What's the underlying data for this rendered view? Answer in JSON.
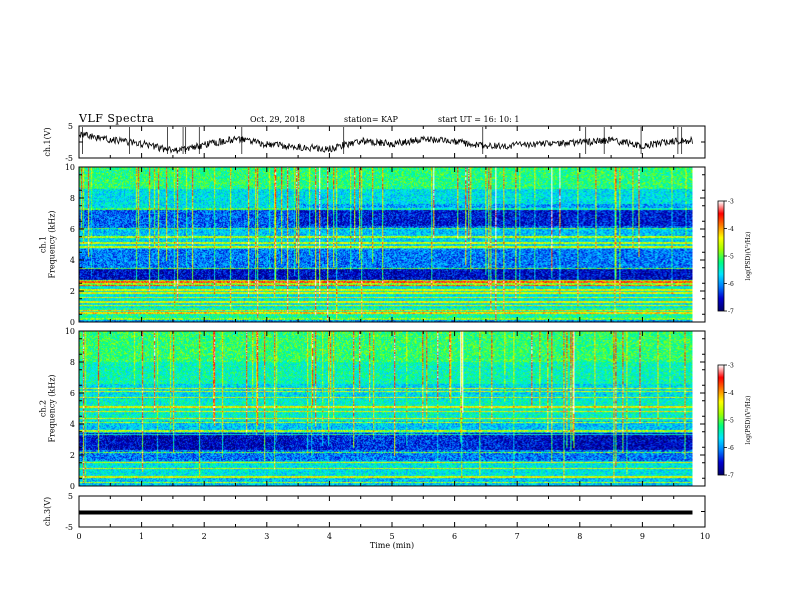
{
  "header": {
    "title": "VLF Spectra",
    "date": "Oct. 29, 2018",
    "station": "station= KAP",
    "start": "start  UT =   16: 10: 1"
  },
  "colors": {
    "colormap": [
      "#00006e",
      "#0000d0",
      "#0080ff",
      "#00e5ff",
      "#00ff80",
      "#a0ff00",
      "#ffff00",
      "#ff8000",
      "#ff0000",
      "#ffffff"
    ],
    "axes": "#000000",
    "trace": "#000000"
  },
  "chart_data": [
    {
      "type": "line",
      "panel": "ch1-waveform",
      "ylabel": "ch.1(V)",
      "ylim": [
        -5,
        5
      ],
      "yticks": [
        "5",
        "-5"
      ],
      "xlim": [
        0,
        10
      ],
      "x": [
        0,
        0.5,
        1.0,
        1.5,
        2.0,
        2.5,
        3.0,
        3.5,
        4.0,
        4.5,
        5.0,
        5.5,
        6.0,
        6.5,
        7.0,
        7.5,
        8.0,
        8.5,
        9.0,
        9.5,
        9.8
      ],
      "values": [
        2.4,
        0.8,
        -0.5,
        -2.8,
        -1.0,
        1.0,
        -0.8,
        -1.5,
        -2.2,
        0.4,
        -0.6,
        0.8,
        0.2,
        -1.4,
        -1.0,
        -0.6,
        -0.2,
        0.6,
        -1.2,
        0.2,
        0.4
      ]
    },
    {
      "type": "heatmap",
      "panel": "ch1-spectrogram",
      "ylabel": "ch.1\nFrequency  (kHz)",
      "ylim": [
        0,
        10
      ],
      "yticks": [
        "0",
        "2",
        "4",
        "6",
        "8",
        "10"
      ],
      "xlim": [
        0,
        9.8
      ]
    },
    {
      "type": "heatmap",
      "panel": "ch2-spectrogram",
      "ylabel": "ch.2\nFrequency  (kHz)",
      "ylim": [
        0,
        10
      ],
      "yticks": [
        "0",
        "2",
        "4",
        "6",
        "8",
        "10"
      ],
      "xlim": [
        0,
        9.8
      ]
    },
    {
      "type": "line",
      "panel": "ch3-waveform",
      "ylabel": "ch.3(V)",
      "ylim": [
        -5,
        5
      ],
      "yticks": [
        "5",
        "-5"
      ],
      "xlim": [
        0,
        10
      ],
      "x": [
        0,
        9.8
      ],
      "values": [
        0,
        0
      ],
      "xlabel": "Time  (min)",
      "xticks": [
        "0",
        "1",
        "2",
        "3",
        "4",
        "5",
        "6",
        "7",
        "8",
        "9",
        "10"
      ]
    }
  ],
  "colorbars": {
    "label": "log(PSD)(V²/Hz)",
    "ticks": [
      "-3",
      "-4",
      "-5",
      "-6",
      "-7"
    ],
    "range": [
      -7,
      -3
    ]
  }
}
